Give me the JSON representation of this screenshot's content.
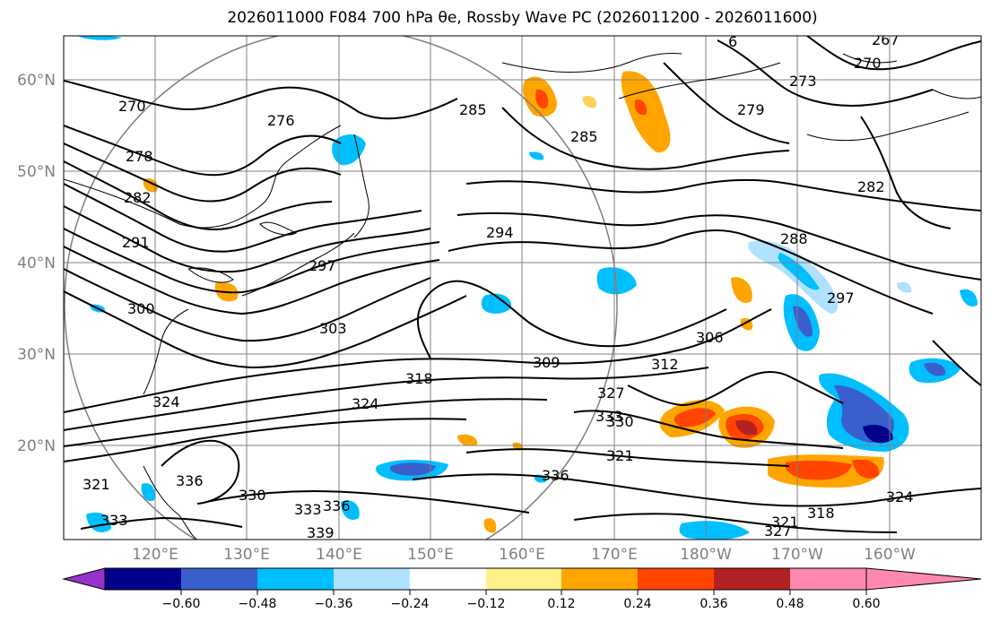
{
  "title": "2026011000 F084 700 hPa θe, Rossby Wave PC (2026011200 - 2026011600)",
  "map": {
    "lat_ticks": [
      "20°N",
      "30°N",
      "40°N",
      "50°N",
      "60°N"
    ],
    "lon_ticks": [
      "120°E",
      "130°E",
      "140°E",
      "150°E",
      "160°E",
      "170°E",
      "180°W",
      "170°W",
      "160°W"
    ]
  },
  "contour_labels": [
    "270",
    "276",
    "278",
    "282",
    "285",
    "285",
    "291",
    "294",
    "297",
    "300",
    "303",
    "306",
    "309",
    "312",
    "318",
    "318",
    "321",
    "321",
    "324",
    "324",
    "327",
    "330",
    "330",
    "333",
    "333",
    "333",
    "336",
    "336",
    "336",
    "339",
    "273",
    "279",
    "282",
    "288",
    "297",
    "267",
    "270",
    "6",
    "327",
    "321",
    "324"
  ],
  "colorbar": {
    "ticks": [
      "−0.60",
      "−0.48",
      "−0.36",
      "−0.24",
      "−0.12",
      "0.12",
      "0.24",
      "0.36",
      "0.48",
      "0.60"
    ],
    "colors": [
      "#9932cc",
      "#00008b",
      "#3a5fcd",
      "#00bfff",
      "#b0e2ff",
      "#ffffff",
      "#fff08a",
      "#ffa500",
      "#ff4500",
      "#b22222",
      "#ff88b0"
    ]
  }
}
